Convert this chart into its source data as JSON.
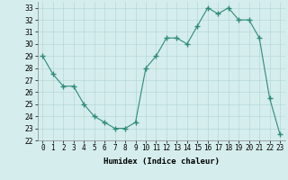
{
  "x": [
    0,
    1,
    2,
    3,
    4,
    5,
    6,
    7,
    8,
    9,
    10,
    11,
    12,
    13,
    14,
    15,
    16,
    17,
    18,
    19,
    20,
    21,
    22,
    23
  ],
  "y": [
    29,
    27.5,
    26.5,
    26.5,
    25,
    24,
    23.5,
    23,
    23,
    23.5,
    28,
    29,
    30.5,
    30.5,
    30,
    31.5,
    33,
    32.5,
    33,
    32,
    32,
    30.5,
    25.5,
    22.5
  ],
  "line_color": "#2e8b7a",
  "marker": "+",
  "marker_size": 4,
  "bg_color": "#d5eded",
  "grid_color": "#b8d8d8",
  "xlabel": "Humidex (Indice chaleur)",
  "ylim": [
    22,
    33.5
  ],
  "xlim": [
    -0.5,
    23.5
  ],
  "yticks": [
    22,
    23,
    24,
    25,
    26,
    27,
    28,
    29,
    30,
    31,
    32,
    33
  ],
  "xtick_labels": [
    "0",
    "1",
    "2",
    "3",
    "4",
    "5",
    "6",
    "7",
    "8",
    "9",
    "10",
    "11",
    "12",
    "13",
    "14",
    "15",
    "16",
    "17",
    "18",
    "19",
    "20",
    "21",
    "22",
    "23"
  ],
  "label_fontsize": 6.5,
  "tick_fontsize": 5.5
}
